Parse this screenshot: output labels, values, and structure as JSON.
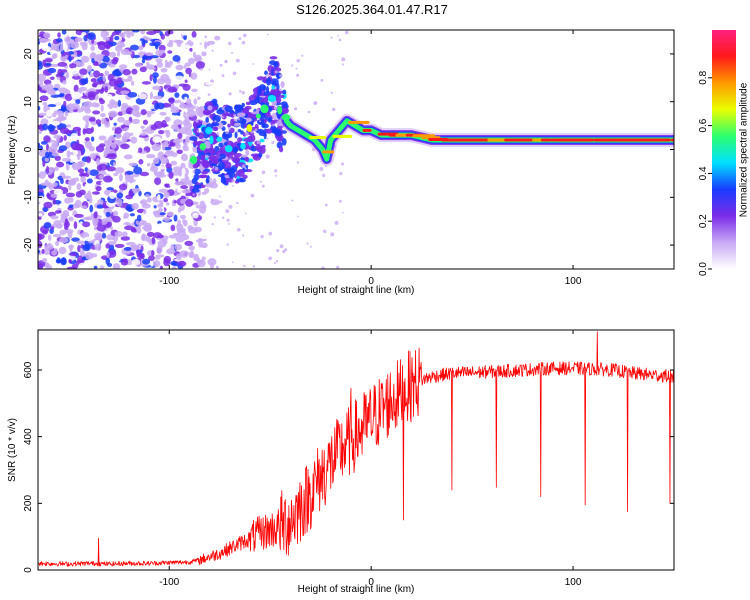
{
  "title": "S126.2025.364.01.47.R17",
  "chart_data": [
    {
      "type": "heatmap",
      "title": "S126.2025.364.01.47.R17",
      "xlabel": "Height of straight line (km)",
      "ylabel": "Frequency (Hz)",
      "xlim": [
        -165,
        150
      ],
      "ylim": [
        -25,
        25
      ],
      "xticks": [
        -100,
        0,
        100
      ],
      "yticks": [
        -20,
        -10,
        0,
        10,
        20
      ],
      "colorbar": {
        "label": "Normalized spectral amplitude",
        "range": [
          0.0,
          1.0
        ],
        "ticks": [
          0.0,
          0.2,
          0.4,
          0.6,
          0.8
        ],
        "tick_labels": [
          "0.0",
          "0.2",
          "0.4",
          "0.6",
          "0.8"
        ],
        "colormap": [
          "#ffffff",
          "#c9a9f5",
          "#7a2ce8",
          "#1a3cff",
          "#00e0ff",
          "#2cff70",
          "#e8ff00",
          "#ff9a00",
          "#ff1a1a",
          "#ff2080"
        ]
      },
      "noise_region_km": [
        -165,
        -85
      ],
      "transition_region_km": [
        -88,
        -42
      ],
      "signal_trace": {
        "x": [
          -88,
          -84,
          -80,
          -76,
          -72,
          -68,
          -64,
          -60,
          -56,
          -52,
          -48,
          -44,
          -40,
          -36,
          -32,
          -28,
          -24,
          -22,
          -20,
          -16,
          -12,
          -8,
          -4,
          0,
          5,
          10,
          20,
          30,
          40,
          50,
          60,
          70,
          80,
          90,
          100,
          110,
          120,
          130,
          140,
          148
        ],
        "y": [
          -2,
          -1,
          2,
          3,
          1,
          1,
          1,
          4,
          6,
          9,
          12,
          7,
          5,
          4,
          3,
          2,
          0,
          -2,
          2,
          4,
          6,
          5,
          4,
          4,
          3,
          3,
          3,
          2,
          2,
          2,
          2,
          2,
          2,
          2,
          2,
          2,
          2,
          2,
          2,
          2
        ],
        "amplitude": [
          0.4,
          0.3,
          0.45,
          0.4,
          0.5,
          0.45,
          0.4,
          0.5,
          0.55,
          0.6,
          0.6,
          0.55,
          0.6,
          0.7,
          0.75,
          0.75,
          0.8,
          0.7,
          0.75,
          0.85,
          0.9,
          0.9,
          0.92,
          0.95,
          0.95,
          0.95,
          0.95,
          0.95,
          0.95,
          0.95,
          0.95,
          0.95,
          0.95,
          0.95,
          0.95,
          0.95,
          0.95,
          0.95,
          0.95,
          0.95
        ]
      }
    },
    {
      "type": "line",
      "xlabel": "Height of straight line (km)",
      "ylabel": "SNR (10 * v/v)",
      "xlim": [
        -165,
        150
      ],
      "ylim": [
        0,
        720
      ],
      "xticks": [
        -100,
        0,
        100
      ],
      "yticks": [
        0,
        200,
        400,
        600
      ],
      "line_color": "#ff0000",
      "series": [
        {
          "name": "SNR",
          "x": [
            -165,
            -150,
            -140,
            -130,
            -120,
            -110,
            -100,
            -90,
            -85,
            -80,
            -75,
            -70,
            -65,
            -60,
            -55,
            -50,
            -45,
            -40,
            -35,
            -30,
            -25,
            -20,
            -15,
            -10,
            -5,
            0,
            5,
            10,
            15,
            20,
            25,
            30,
            35,
            40,
            50,
            60,
            70,
            80,
            90,
            100,
            110,
            120,
            130,
            140,
            150
          ],
          "values": [
            20,
            18,
            20,
            18,
            20,
            20,
            22,
            24,
            30,
            40,
            50,
            65,
            80,
            95,
            110,
            120,
            130,
            150,
            190,
            230,
            280,
            320,
            360,
            390,
            420,
            450,
            480,
            510,
            530,
            555,
            570,
            580,
            585,
            590,
            592,
            595,
            598,
            602,
            605,
            605,
            603,
            600,
            590,
            585,
            580
          ]
        }
      ],
      "dropouts": [
        {
          "x": 16,
          "value": 150
        },
        {
          "x": 40,
          "value": 240
        },
        {
          "x": 62,
          "value": 248
        },
        {
          "x": 84,
          "value": 220
        },
        {
          "x": 106,
          "value": 195
        },
        {
          "x": 127,
          "value": 175
        },
        {
          "x": 148,
          "value": 200
        }
      ],
      "spikes": [
        {
          "x": -135,
          "value": 95
        },
        {
          "x": -10,
          "value": 545
        },
        {
          "x": 112,
          "value": 715
        }
      ]
    }
  ]
}
